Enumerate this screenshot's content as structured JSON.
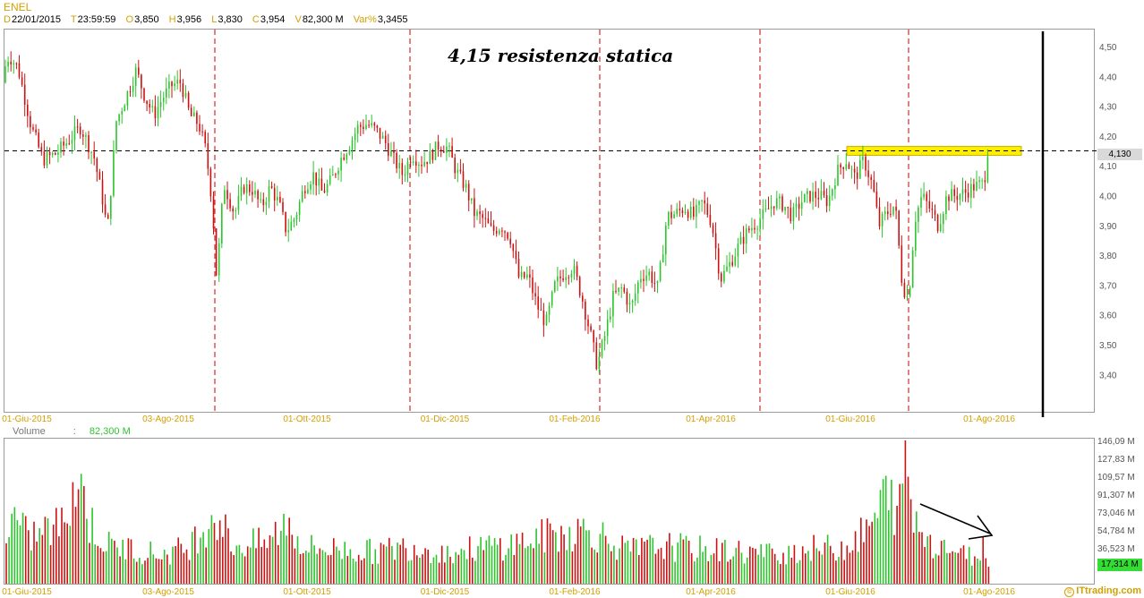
{
  "header": {
    "symbol": "ENEL",
    "d_key": "D",
    "d_val": "22/01/2015",
    "t_key": "T",
    "t_val": "23:59:59",
    "o_key": "O",
    "o_val": "3,850",
    "h_key": "H",
    "h_val": "3,956",
    "l_key": "L",
    "l_val": "3,830",
    "c_key": "C",
    "c_val": "3,954",
    "v_key": "V",
    "v_val": "82,300 M",
    "var_key": "Var%",
    "var_val": "3,3455"
  },
  "annotation": "4,15 resistenza statica",
  "volume_label": "Volume",
  "volume_sep": ":",
  "volume_value": "82,300 M",
  "brand": "ITtrading.com",
  "brand_icon": "copyright-icon",
  "last_price_tag": "4,130",
  "last_volume_tag": "17,314 M",
  "colors": {
    "up": "#2cc52c",
    "down": "#cc1111",
    "resistance_band": "#ffee00",
    "dashed_separator": "#cc0000",
    "axis_text": "#d4a000"
  },
  "chart_data": [
    {
      "type": "candlestick",
      "name": "ENEL",
      "x_tick_labels": [
        "01-Giu-2015",
        "03-Ago-2015",
        "01-Ott-2015",
        "01-Dic-2015",
        "01-Feb-2016",
        "01-Apr-2016",
        "01-Giu-2016",
        "01-Ago-2016"
      ],
      "y_tick_labels": [
        "4,50",
        "4,40",
        "4,30",
        "4,20",
        "4,10",
        "4,00",
        "3,90",
        "3,80",
        "3,70",
        "3,60",
        "3,50",
        "3,40"
      ],
      "y_ticks": [
        4.5,
        4.4,
        4.3,
        4.2,
        4.1,
        4.0,
        3.9,
        3.8,
        3.7,
        3.6,
        3.5,
        3.4
      ],
      "ylim": [
        3.28,
        4.55
      ],
      "resistance_level": 4.15,
      "resistance_band": [
        4.135,
        4.165
      ],
      "last_price": 4.13,
      "close_path": [
        [
          0,
          4.38
        ],
        [
          10,
          4.47
        ],
        [
          20,
          4.43
        ],
        [
          35,
          4.23
        ],
        [
          48,
          4.12
        ],
        [
          62,
          4.14
        ],
        [
          75,
          4.18
        ],
        [
          90,
          4.23
        ],
        [
          105,
          4.13
        ],
        [
          115,
          3.98
        ],
        [
          120,
          3.88
        ],
        [
          130,
          4.25
        ],
        [
          142,
          4.34
        ],
        [
          152,
          4.42
        ],
        [
          162,
          4.33
        ],
        [
          172,
          4.27
        ],
        [
          182,
          4.33
        ],
        [
          192,
          4.37
        ],
        [
          202,
          4.38
        ],
        [
          212,
          4.27
        ],
        [
          222,
          4.24
        ],
        [
          230,
          4.15
        ],
        [
          237,
          3.98
        ],
        [
          242,
          3.72
        ],
        [
          250,
          4.04
        ],
        [
          262,
          3.94
        ],
        [
          272,
          4.03
        ],
        [
          282,
          4.02
        ],
        [
          292,
          3.96
        ],
        [
          302,
          4.03
        ],
        [
          312,
          3.97
        ],
        [
          320,
          3.88
        ],
        [
          330,
          3.93
        ],
        [
          340,
          4.03
        ],
        [
          350,
          4.07
        ],
        [
          360,
          4.01
        ],
        [
          370,
          4.05
        ],
        [
          380,
          4.12
        ],
        [
          390,
          4.17
        ],
        [
          400,
          4.23
        ],
        [
          410,
          4.24
        ],
        [
          420,
          4.22
        ],
        [
          430,
          4.18
        ],
        [
          440,
          4.12
        ],
        [
          450,
          4.07
        ],
        [
          460,
          4.14
        ],
        [
          470,
          4.11
        ],
        [
          480,
          4.13
        ],
        [
          490,
          4.17
        ],
        [
          500,
          4.16
        ],
        [
          510,
          4.08
        ],
        [
          520,
          4.03
        ],
        [
          530,
          3.94
        ],
        [
          540,
          3.92
        ],
        [
          550,
          3.88
        ],
        [
          560,
          3.9
        ],
        [
          570,
          3.86
        ],
        [
          580,
          3.72
        ],
        [
          590,
          3.73
        ],
        [
          600,
          3.63
        ],
        [
          610,
          3.57
        ],
        [
          620,
          3.7
        ],
        [
          630,
          3.74
        ],
        [
          640,
          3.76
        ],
        [
          650,
          3.66
        ],
        [
          660,
          3.53
        ],
        [
          667,
          3.43
        ],
        [
          675,
          3.52
        ],
        [
          685,
          3.66
        ],
        [
          695,
          3.69
        ],
        [
          705,
          3.62
        ],
        [
          715,
          3.73
        ],
        [
          725,
          3.74
        ],
        [
          735,
          3.69
        ],
        [
          745,
          3.93
        ],
        [
          755,
          3.94
        ],
        [
          765,
          3.96
        ],
        [
          775,
          3.93
        ],
        [
          785,
          3.98
        ],
        [
          795,
          3.91
        ],
        [
          805,
          3.72
        ],
        [
          815,
          3.77
        ],
        [
          825,
          3.83
        ],
        [
          835,
          3.88
        ],
        [
          845,
          3.91
        ],
        [
          855,
          3.94
        ],
        [
          865,
          3.98
        ],
        [
          875,
          3.97
        ],
        [
          885,
          3.93
        ],
        [
          895,
          3.98
        ],
        [
          905,
          4.0
        ],
        [
          915,
          4.0
        ],
        [
          925,
          3.98
        ],
        [
          935,
          4.08
        ],
        [
          945,
          4.12
        ],
        [
          955,
          4.06
        ],
        [
          965,
          4.12
        ],
        [
          975,
          4.03
        ],
        [
          982,
          3.9
        ],
        [
          990,
          3.94
        ],
        [
          1000,
          3.97
        ],
        [
          1008,
          3.7
        ],
        [
          1015,
          3.65
        ],
        [
          1022,
          3.92
        ],
        [
          1030,
          4.0
        ],
        [
          1040,
          3.95
        ],
        [
          1048,
          3.9
        ],
        [
          1058,
          4.0
        ],
        [
          1068,
          4.0
        ],
        [
          1078,
          4.01
        ],
        [
          1088,
          4.03
        ],
        [
          1098,
          4.04
        ],
        [
          1105,
          4.13
        ]
      ]
    },
    {
      "type": "bar",
      "name": "Volume",
      "y_tick_labels": [
        "146,09 M",
        "127,83 M",
        "109,57 M",
        "91,307 M",
        "73,046 M",
        "54,784 M",
        "36,523 M"
      ],
      "y_ticks": [
        146.09,
        127.83,
        109.57,
        91.307,
        73.046,
        54.784,
        36.523
      ],
      "ylim": [
        0,
        146.09
      ],
      "last_value": 17.314,
      "peak_value": 146.09,
      "volume_path": [
        [
          0,
          45
        ],
        [
          15,
          72
        ],
        [
          30,
          52
        ],
        [
          50,
          58
        ],
        [
          70,
          65
        ],
        [
          80,
          110
        ],
        [
          90,
          112
        ],
        [
          100,
          68
        ],
        [
          120,
          42
        ],
        [
          150,
          38
        ],
        [
          180,
          32
        ],
        [
          210,
          40
        ],
        [
          240,
          80
        ],
        [
          260,
          42
        ],
        [
          300,
          45
        ],
        [
          320,
          70
        ],
        [
          340,
          40
        ],
        [
          380,
          38
        ],
        [
          420,
          35
        ],
        [
          460,
          42
        ],
        [
          500,
          34
        ],
        [
          540,
          40
        ],
        [
          580,
          45
        ],
        [
          620,
          55
        ],
        [
          660,
          60
        ],
        [
          700,
          36
        ],
        [
          740,
          42
        ],
        [
          780,
          38
        ],
        [
          820,
          36
        ],
        [
          860,
          33
        ],
        [
          900,
          38
        ],
        [
          940,
          40
        ],
        [
          970,
          58
        ],
        [
          990,
          98
        ],
        [
          1005,
          80
        ],
        [
          1012,
          146.09
        ],
        [
          1020,
          70
        ],
        [
          1040,
          48
        ],
        [
          1060,
          40
        ],
        [
          1080,
          30
        ],
        [
          1095,
          35
        ],
        [
          1100,
          44
        ],
        [
          1105,
          17.314
        ]
      ]
    }
  ]
}
